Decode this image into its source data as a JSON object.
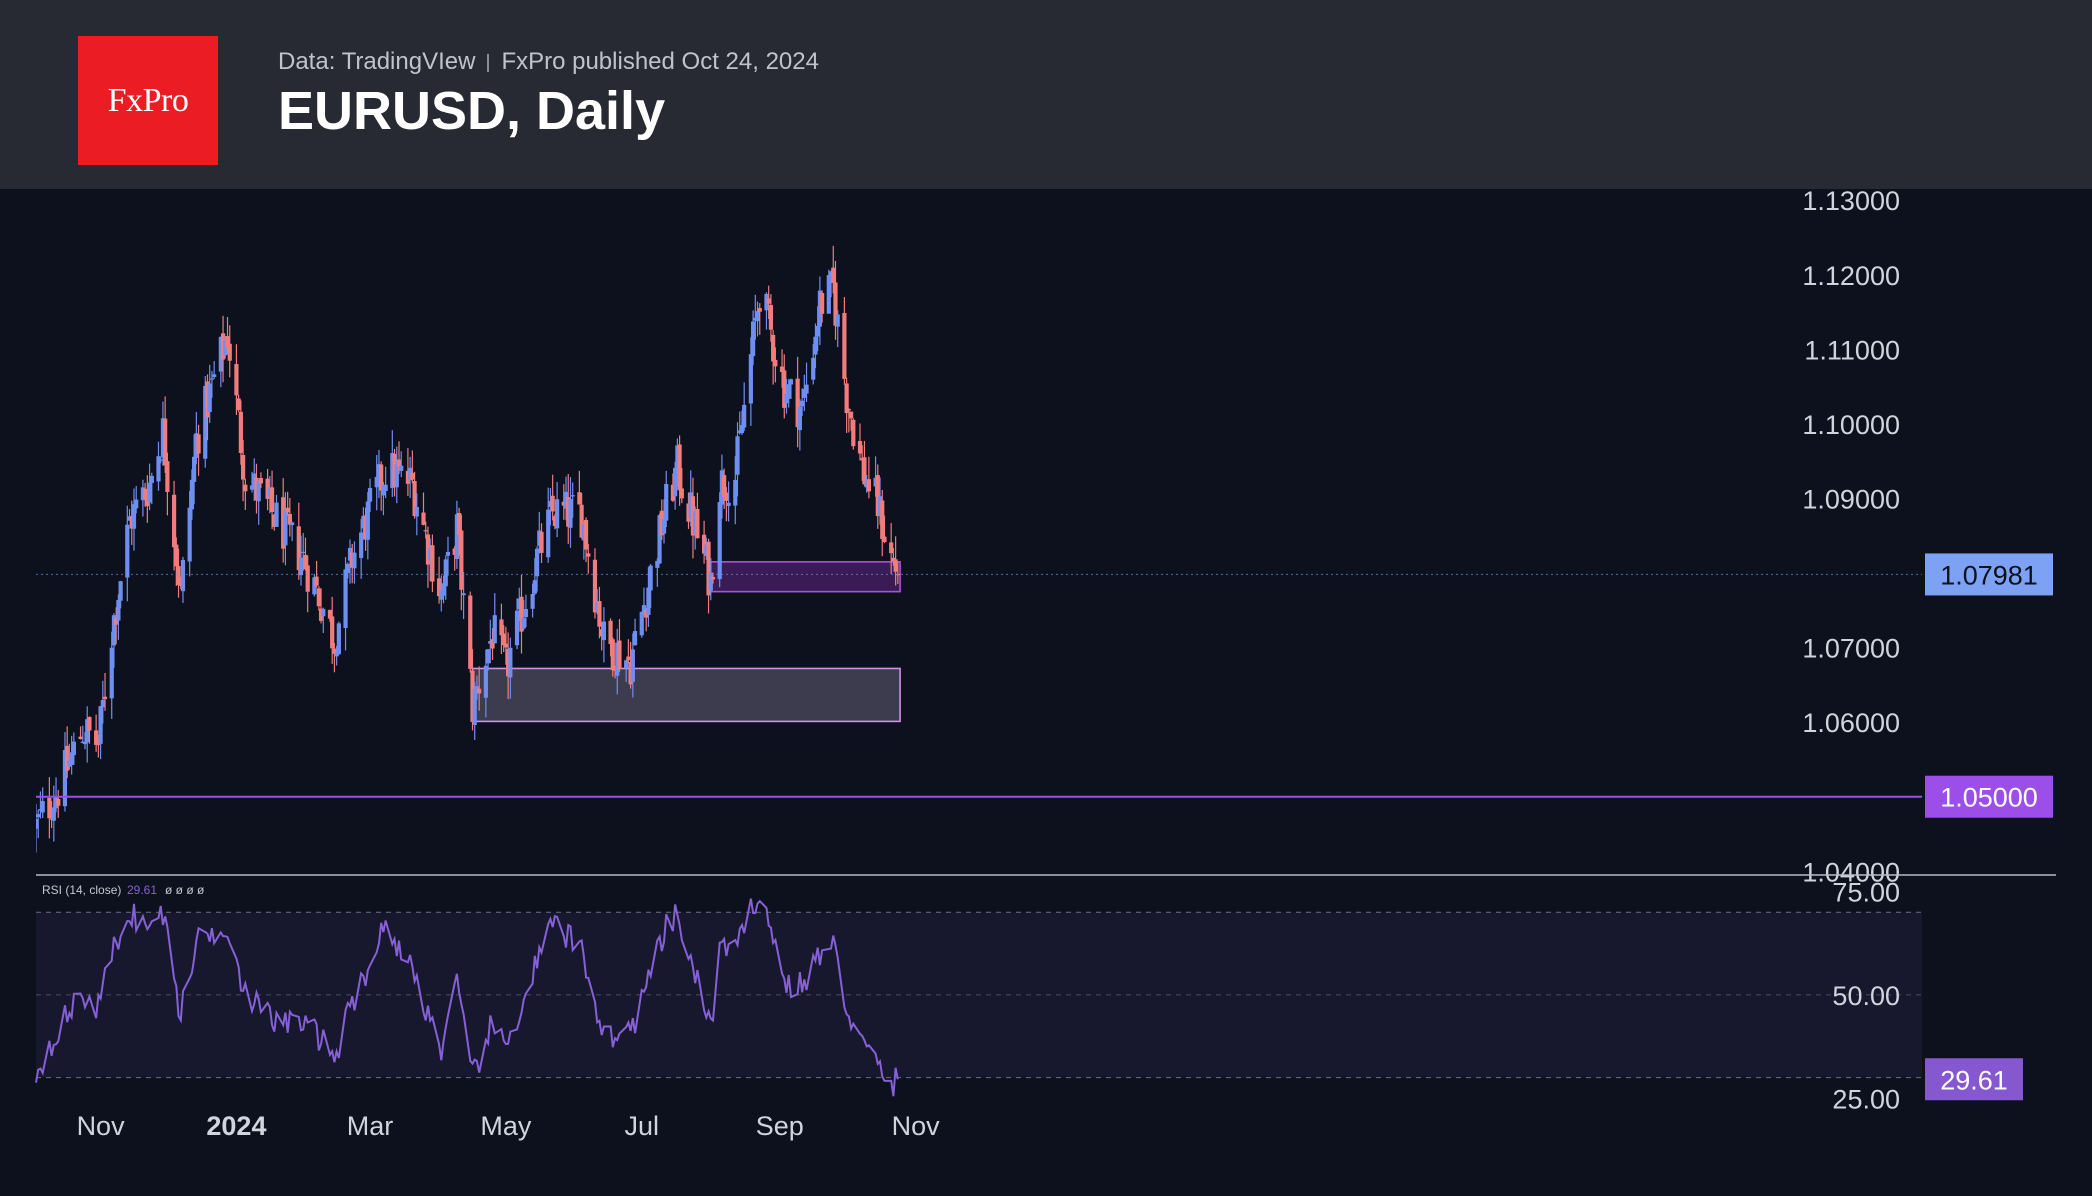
{
  "header": {
    "logo_text": "FxPro",
    "data_source": "Data: TradingVIew",
    "published": "FxPro published Oct 24, 2024",
    "title": "EURUSD, Daily"
  },
  "chart_data": [
    {
      "type": "candlestick",
      "title": "EURUSD, Daily",
      "x_axis_labels": [
        "Nov",
        "2024",
        "Mar",
        "May",
        "Jul",
        "Sep",
        "Nov"
      ],
      "y_tick_labels": [
        "1.13000",
        "1.12000",
        "1.11000",
        "1.10000",
        "1.09000",
        "1.07000",
        "1.06000",
        "1.04000"
      ],
      "ylim": [
        1.0395,
        1.1315
      ],
      "current_price": 1.07981,
      "current_price_label": "1.07981",
      "level_line": 1.05,
      "level_line_label": "1.05000",
      "zones": [
        {
          "name": "support-zone-upper",
          "low": 1.0775,
          "high": 1.0815,
          "start": "Aug 1, 2024",
          "end": "Oct 25, 2024"
        },
        {
          "name": "support-zone-lower",
          "low": 1.0601,
          "high": 1.0672,
          "start": "Apr 16, 2024",
          "end": "Oct 25, 2024"
        }
      ],
      "close_anchors": [
        [
          "Oct 3, 2023",
          1.046
        ],
        [
          "Oct 13, 2023",
          1.051
        ],
        [
          "Oct 24, 2023",
          1.059
        ],
        [
          "Oct 31, 2023",
          1.057
        ],
        [
          "Nov 6, 2023",
          1.072
        ],
        [
          "Nov 14, 2023",
          1.087
        ],
        [
          "Nov 23, 2023",
          1.092
        ],
        [
          "Nov 29, 2023",
          1.099
        ],
        [
          "Dec 7, 2023",
          1.077
        ],
        [
          "Dec 14, 2023",
          1.098
        ],
        [
          "Dec 28, 2023",
          1.112
        ],
        [
          "Jan 5, 2024",
          1.093
        ],
        [
          "Jan 17, 2024",
          1.088
        ],
        [
          "Jan 31, 2024",
          1.082
        ],
        [
          "Feb 7, 2024",
          1.077
        ],
        [
          "Feb 14, 2024",
          1.071
        ],
        [
          "Feb 22, 2024",
          1.082
        ],
        [
          "Mar 8, 2024",
          1.094
        ],
        [
          "Mar 20, 2024",
          1.092
        ],
        [
          "Apr 2, 2024",
          1.077
        ],
        [
          "Apr 9, 2024",
          1.086
        ],
        [
          "Apr 16, 2024",
          1.062
        ],
        [
          "Apr 25, 2024",
          1.072
        ],
        [
          "May 1, 2024",
          1.067
        ],
        [
          "May 15, 2024",
          1.082
        ],
        [
          "May 22, 2024",
          1.088
        ],
        [
          "Jun 4, 2024",
          1.088
        ],
        [
          "Jun 14, 2024",
          1.071
        ],
        [
          "Jun 26, 2024",
          1.068
        ],
        [
          "Jul 12, 2024",
          1.089
        ],
        [
          "Jul 17, 2024",
          1.094
        ],
        [
          "Aug 1, 2024",
          1.079
        ],
        [
          "Aug 5, 2024",
          1.092
        ],
        [
          "Aug 12, 2024",
          1.093
        ],
        [
          "Aug 23, 2024",
          1.118
        ],
        [
          "Sep 3, 2024",
          1.105
        ],
        [
          "Sep 11, 2024",
          1.102
        ],
        [
          "Sep 19, 2024",
          1.116
        ],
        [
          "Sep 25, 2024",
          1.118
        ],
        [
          "Oct 1, 2024",
          1.104
        ],
        [
          "Oct 8, 2024",
          1.094
        ],
        [
          "Oct 15, 2024",
          1.089
        ],
        [
          "Oct 21, 2024",
          1.082
        ],
        [
          "Oct 24, 2024",
          1.0798
        ]
      ]
    },
    {
      "type": "line",
      "name": "RSI (14, close)",
      "legend_name": "RSI (14, close)",
      "legend_value": "29.61",
      "legend_extras": "ø ø ø ø",
      "y_tick_labels": [
        "75.00",
        "50.00",
        "25.00"
      ],
      "ylim": [
        20,
        79
      ],
      "band": [
        30,
        70
      ],
      "midline": 50,
      "current_value": 29.61,
      "current_value_label": "29.61",
      "points": [
        [
          "Oct 3, 2023",
          31
        ],
        [
          "Oct 13, 2023",
          42
        ],
        [
          "Oct 24, 2023",
          50
        ],
        [
          "Oct 31, 2023",
          47
        ],
        [
          "Nov 6, 2023",
          60
        ],
        [
          "Nov 14, 2023",
          70
        ],
        [
          "Nov 23, 2023",
          66
        ],
        [
          "Nov 29, 2023",
          70
        ],
        [
          "Dec 7, 2023",
          45
        ],
        [
          "Dec 14, 2023",
          63
        ],
        [
          "Dec 28, 2023",
          67
        ],
        [
          "Jan 5, 2024",
          50
        ],
        [
          "Jan 17, 2024",
          44
        ],
        [
          "Jan 31, 2024",
          43
        ],
        [
          "Feb 7, 2024",
          40
        ],
        [
          "Feb 14, 2024",
          35
        ],
        [
          "Feb 22, 2024",
          48
        ],
        [
          "Mar 8, 2024",
          67
        ],
        [
          "Mar 20, 2024",
          56
        ],
        [
          "Apr 2, 2024",
          37
        ],
        [
          "Apr 9, 2024",
          52
        ],
        [
          "Apr 16, 2024",
          30
        ],
        [
          "Apr 25, 2024",
          43
        ],
        [
          "May 1, 2024",
          37
        ],
        [
          "May 15, 2024",
          58
        ],
        [
          "May 22, 2024",
          67
        ],
        [
          "Jun 4, 2024",
          61
        ],
        [
          "Jun 14, 2024",
          40
        ],
        [
          "Jun 26, 2024",
          41
        ],
        [
          "Jul 12, 2024",
          66
        ],
        [
          "Jul 17, 2024",
          69
        ],
        [
          "Aug 1, 2024",
          42
        ],
        [
          "Aug 5, 2024",
          62
        ],
        [
          "Aug 12, 2024",
          60
        ],
        [
          "Aug 23, 2024",
          76
        ],
        [
          "Sep 3, 2024",
          53
        ],
        [
          "Sep 11, 2024",
          52
        ],
        [
          "Sep 19, 2024",
          60
        ],
        [
          "Sep 25, 2024",
          62
        ],
        [
          "Oct 1, 2024",
          47
        ],
        [
          "Oct 8, 2024",
          38
        ],
        [
          "Oct 15, 2024",
          33
        ],
        [
          "Oct 21, 2024",
          28
        ],
        [
          "Oct 24, 2024",
          29.61
        ]
      ]
    }
  ],
  "colors": {
    "background": "#0d111d",
    "header": "#272a33",
    "logo": "#ec1c24",
    "bull": "#6f8ff0",
    "bear": "#f07c7c",
    "price_badge": "#7ea2f3",
    "level": "#9c4fe8",
    "zone_border": "#d48fe8",
    "rsi_line": "#8660d6",
    "rsi_badge": "#8658d0"
  }
}
